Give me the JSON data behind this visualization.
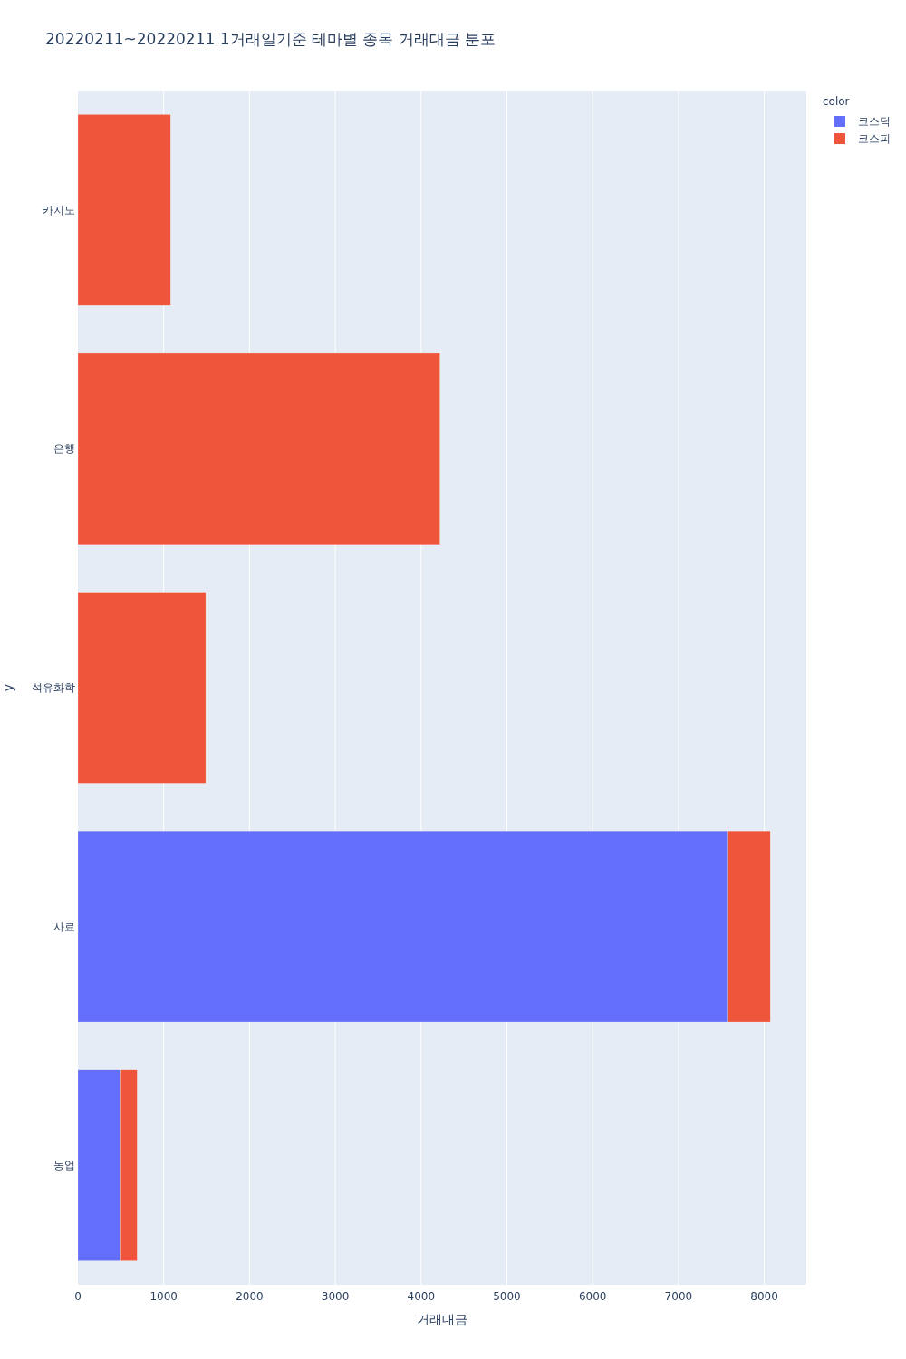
{
  "chart_data": {
    "type": "bar",
    "title": "20220211~20220211 1거래일기준 테마별 종목 거래대금 분포",
    "xlabel": "거래대금",
    "ylabel": "y",
    "legend_title": "color",
    "orientation": "horizontal",
    "stacked": true,
    "categories": [
      "카지노",
      "은행",
      "석유화학",
      "사료",
      "농업"
    ],
    "series": [
      {
        "name": "코스닥",
        "color": "#636efa",
        "values": [
          null,
          null,
          null,
          7570,
          500
        ]
      },
      {
        "name": "코스피",
        "color": "#ef553b",
        "values": [
          1080,
          4220,
          1490,
          500,
          190
        ]
      }
    ],
    "xlim": [
      0,
      8490
    ],
    "xticks": [
      0,
      1000,
      2000,
      3000,
      4000,
      5000,
      6000,
      7000,
      8000
    ],
    "grid": "x",
    "legend": "top right"
  }
}
